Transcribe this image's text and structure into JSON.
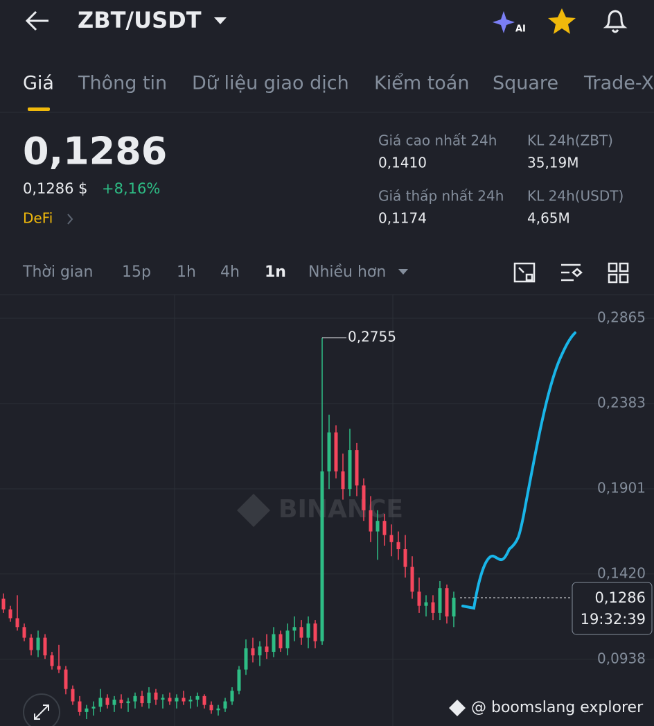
{
  "header": {
    "title": "ZBT/USDT"
  },
  "tabs": [
    "Giá",
    "Thông tin",
    "Dữ liệu giao dịch",
    "Kiểm toán",
    "Square",
    "Trade-X"
  ],
  "price": {
    "main": "0,1286",
    "fiat": "0,1286 $",
    "change": "+8,16%",
    "tag": "DeFi"
  },
  "stats": [
    {
      "label": "Giá cao nhất 24h",
      "value": "0,1410"
    },
    {
      "label": "KL 24h(ZBT)",
      "value": "35,19M"
    },
    {
      "label": "Giá thấp nhất 24h",
      "value": "0,1174"
    },
    {
      "label": "KL 24h(USDT)",
      "value": "4,65M"
    }
  ],
  "timeframes": [
    "Thời gian",
    "15p",
    "1h",
    "4h",
    "1n",
    "Nhiều hơn"
  ],
  "watermark": "BINANCE",
  "footer": "@ boomslang explorer",
  "chart_data": {
    "type": "candlestick",
    "up_color": "#2ebd85",
    "down_color": "#f6465d",
    "ylim": [
      0.0561,
      0.2998
    ],
    "yticks": [
      {
        "value": 0.2865,
        "label": "0,2865"
      },
      {
        "value": 0.2383,
        "label": "0,2383"
      },
      {
        "value": 0.1901,
        "label": "0,1901"
      },
      {
        "value": 0.142,
        "label": "0,1420"
      },
      {
        "value": 0.0938,
        "label": "0,0938"
      }
    ],
    "grid": true,
    "high_label": {
      "value": 0.2755,
      "label": "0,2755"
    },
    "current_price": {
      "value": 0.1286,
      "label": "0,1286"
    },
    "time": "19:32:39",
    "open": [
      0.128,
      0.122,
      0.117,
      0.112,
      0.106,
      0.099,
      0.106,
      0.096,
      0.09,
      0.088,
      0.077,
      0.07,
      0.064,
      0.066,
      0.067,
      0.072,
      0.068,
      0.071,
      0.069,
      0.07,
      0.073,
      0.069,
      0.075,
      0.071,
      0.072,
      0.07,
      0.072,
      0.07,
      0.071,
      0.073,
      0.068,
      0.065,
      0.066,
      0.07,
      0.076,
      0.088,
      0.1,
      0.096,
      0.101,
      0.098,
      0.108,
      0.1,
      0.11,
      0.112,
      0.106,
      0.114,
      0.104,
      0.2,
      0.222,
      0.2,
      0.19,
      0.212,
      0.192,
      0.178,
      0.166,
      0.172,
      0.164,
      0.16,
      0.156,
      0.146,
      0.132,
      0.124,
      0.126,
      0.12,
      0.134,
      0.118
    ],
    "high": [
      0.131,
      0.124,
      0.13,
      0.114,
      0.108,
      0.11,
      0.108,
      0.098,
      0.102,
      0.09,
      0.079,
      0.073,
      0.068,
      0.07,
      0.077,
      0.074,
      0.073,
      0.074,
      0.072,
      0.075,
      0.076,
      0.078,
      0.077,
      0.074,
      0.075,
      0.074,
      0.076,
      0.073,
      0.075,
      0.074,
      0.07,
      0.068,
      0.072,
      0.078,
      0.09,
      0.105,
      0.106,
      0.104,
      0.108,
      0.112,
      0.11,
      0.114,
      0.118,
      0.116,
      0.118,
      0.116,
      0.2755,
      0.232,
      0.226,
      0.21,
      0.224,
      0.216,
      0.196,
      0.186,
      0.178,
      0.176,
      0.17,
      0.166,
      0.164,
      0.152,
      0.14,
      0.13,
      0.13,
      0.138,
      0.136,
      0.132
    ],
    "low": [
      0.12,
      0.115,
      0.11,
      0.104,
      0.096,
      0.095,
      0.094,
      0.088,
      0.086,
      0.074,
      0.068,
      0.062,
      0.06,
      0.062,
      0.064,
      0.066,
      0.064,
      0.066,
      0.064,
      0.066,
      0.067,
      0.066,
      0.068,
      0.066,
      0.068,
      0.066,
      0.068,
      0.066,
      0.067,
      0.066,
      0.063,
      0.062,
      0.064,
      0.068,
      0.074,
      0.085,
      0.092,
      0.09,
      0.094,
      0.095,
      0.098,
      0.096,
      0.104,
      0.102,
      0.1,
      0.1,
      0.102,
      0.19,
      0.196,
      0.184,
      0.186,
      0.186,
      0.172,
      0.16,
      0.15,
      0.158,
      0.152,
      0.15,
      0.14,
      0.128,
      0.12,
      0.118,
      0.116,
      0.116,
      0.114,
      0.112
    ],
    "close": [
      0.122,
      0.117,
      0.112,
      0.106,
      0.099,
      0.106,
      0.096,
      0.09,
      0.088,
      0.077,
      0.07,
      0.064,
      0.066,
      0.067,
      0.072,
      0.068,
      0.071,
      0.069,
      0.07,
      0.073,
      0.069,
      0.075,
      0.071,
      0.072,
      0.07,
      0.072,
      0.07,
      0.071,
      0.073,
      0.068,
      0.065,
      0.066,
      0.07,
      0.076,
      0.088,
      0.1,
      0.096,
      0.101,
      0.098,
      0.108,
      0.1,
      0.11,
      0.112,
      0.106,
      0.114,
      0.104,
      0.2,
      0.222,
      0.2,
      0.19,
      0.212,
      0.192,
      0.178,
      0.166,
      0.172,
      0.164,
      0.16,
      0.156,
      0.146,
      0.132,
      0.124,
      0.126,
      0.12,
      0.134,
      0.118,
      0.1286
    ]
  }
}
